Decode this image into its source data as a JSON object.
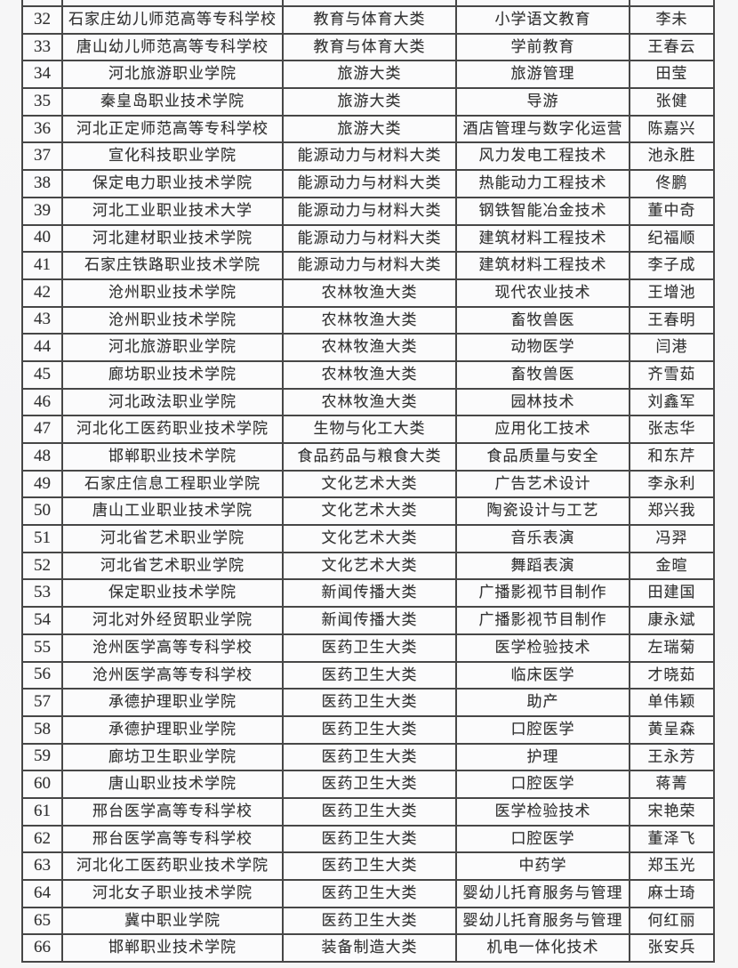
{
  "page": {
    "background_color": "#f5f5f6",
    "table_border_color": "#474747",
    "text_color": "#333333"
  },
  "table": {
    "column_keys": [
      "no",
      "school",
      "category",
      "major",
      "name"
    ],
    "rows": [
      {
        "no": "32",
        "school": "石家庄幼儿师范高等专科学校",
        "category": "教育与体育大类",
        "major": "小学语文教育",
        "name": "李未"
      },
      {
        "no": "33",
        "school": "唐山幼儿师范高等专科学校",
        "category": "教育与体育大类",
        "major": "学前教育",
        "name": "王春云"
      },
      {
        "no": "34",
        "school": "河北旅游职业学院",
        "category": "旅游大类",
        "major": "旅游管理",
        "name": "田莹"
      },
      {
        "no": "35",
        "school": "秦皇岛职业技术学院",
        "category": "旅游大类",
        "major": "导游",
        "name": "张健"
      },
      {
        "no": "36",
        "school": "河北正定师范高等专科学校",
        "category": "旅游大类",
        "major": "酒店管理与数字化运营",
        "name": "陈嘉兴"
      },
      {
        "no": "37",
        "school": "宣化科技职业学院",
        "category": "能源动力与材料大类",
        "major": "风力发电工程技术",
        "name": "池永胜"
      },
      {
        "no": "38",
        "school": "保定电力职业技术学院",
        "category": "能源动力与材料大类",
        "major": "热能动力工程技术",
        "name": "佟鹏"
      },
      {
        "no": "39",
        "school": "河北工业职业技术大学",
        "category": "能源动力与材料大类",
        "major": "钢铁智能冶金技术",
        "name": "董中奇"
      },
      {
        "no": "40",
        "school": "河北建材职业技术学院",
        "category": "能源动力与材料大类",
        "major": "建筑材料工程技术",
        "name": "纪福顺"
      },
      {
        "no": "41",
        "school": "石家庄铁路职业技术学院",
        "category": "能源动力与材料大类",
        "major": "建筑材料工程技术",
        "name": "李子成"
      },
      {
        "no": "42",
        "school": "沧州职业技术学院",
        "category": "农林牧渔大类",
        "major": "现代农业技术",
        "name": "王增池"
      },
      {
        "no": "43",
        "school": "沧州职业技术学院",
        "category": "农林牧渔大类",
        "major": "畜牧兽医",
        "name": "王春明"
      },
      {
        "no": "44",
        "school": "河北旅游职业学院",
        "category": "农林牧渔大类",
        "major": "动物医学",
        "name": "闫港"
      },
      {
        "no": "45",
        "school": "廊坊职业技术学院",
        "category": "农林牧渔大类",
        "major": "畜牧兽医",
        "name": "齐雪茹"
      },
      {
        "no": "46",
        "school": "河北政法职业学院",
        "category": "农林牧渔大类",
        "major": "园林技术",
        "name": "刘鑫军"
      },
      {
        "no": "47",
        "school": "河北化工医药职业技术学院",
        "category": "生物与化工大类",
        "major": "应用化工技术",
        "name": "张志华"
      },
      {
        "no": "48",
        "school": "邯郸职业技术学院",
        "category": "食品药品与粮食大类",
        "major": "食品质量与安全",
        "name": "和东芹"
      },
      {
        "no": "49",
        "school": "石家庄信息工程职业学院",
        "category": "文化艺术大类",
        "major": "广告艺术设计",
        "name": "李永利"
      },
      {
        "no": "50",
        "school": "唐山工业职业技术学院",
        "category": "文化艺术大类",
        "major": "陶瓷设计与工艺",
        "name": "郑兴我"
      },
      {
        "no": "51",
        "school": "河北省艺术职业学院",
        "category": "文化艺术大类",
        "major": "音乐表演",
        "name": "冯羿"
      },
      {
        "no": "52",
        "school": "河北省艺术职业学院",
        "category": "文化艺术大类",
        "major": "舞蹈表演",
        "name": "金暄"
      },
      {
        "no": "53",
        "school": "保定职业技术学院",
        "category": "新闻传播大类",
        "major": "广播影视节目制作",
        "name": "田建国"
      },
      {
        "no": "54",
        "school": "河北对外经贸职业学院",
        "category": "新闻传播大类",
        "major": "广播影视节目制作",
        "name": "康永斌"
      },
      {
        "no": "55",
        "school": "沧州医学高等专科学校",
        "category": "医药卫生大类",
        "major": "医学检验技术",
        "name": "左瑞菊"
      },
      {
        "no": "56",
        "school": "沧州医学高等专科学校",
        "category": "医药卫生大类",
        "major": "临床医学",
        "name": "才晓茹"
      },
      {
        "no": "57",
        "school": "承德护理职业学院",
        "category": "医药卫生大类",
        "major": "助产",
        "name": "单伟颖"
      },
      {
        "no": "58",
        "school": "承德护理职业学院",
        "category": "医药卫生大类",
        "major": "口腔医学",
        "name": "黄呈森"
      },
      {
        "no": "59",
        "school": "廊坊卫生职业学院",
        "category": "医药卫生大类",
        "major": "护理",
        "name": "王永芳"
      },
      {
        "no": "60",
        "school": "唐山职业技术学院",
        "category": "医药卫生大类",
        "major": "口腔医学",
        "name": "蒋菁"
      },
      {
        "no": "61",
        "school": "邢台医学高等专科学校",
        "category": "医药卫生大类",
        "major": "医学检验技术",
        "name": "宋艳荣"
      },
      {
        "no": "62",
        "school": "邢台医学高等专科学校",
        "category": "医药卫生大类",
        "major": "口腔医学",
        "name": "董泽飞"
      },
      {
        "no": "63",
        "school": "河北化工医药职业技术学院",
        "category": "医药卫生大类",
        "major": "中药学",
        "name": "郑玉光"
      },
      {
        "no": "64",
        "school": "河北女子职业技术学院",
        "category": "医药卫生大类",
        "major": "婴幼儿托育服务与管理",
        "name": "麻士琦"
      },
      {
        "no": "65",
        "school": "冀中职业学院",
        "category": "医药卫生大类",
        "major": "婴幼儿托育服务与管理",
        "name": "何红丽"
      },
      {
        "no": "66",
        "school": "邯郸职业技术学院",
        "category": "装备制造大类",
        "major": "机电一体化技术",
        "name": "张安兵"
      }
    ]
  }
}
